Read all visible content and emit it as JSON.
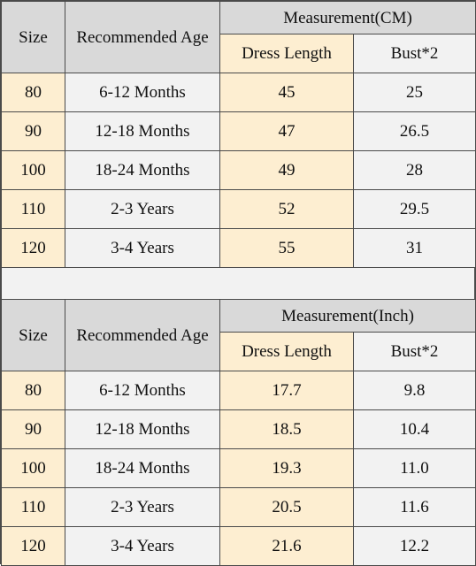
{
  "tables": [
    {
      "headers": {
        "size": "Size",
        "age": "Recommended Age",
        "measurement": "Measurement(CM)",
        "dress_length": "Dress Length",
        "bust": "Bust*2"
      },
      "rows": [
        {
          "size": "80",
          "age": "6-12 Months",
          "length": "45",
          "bust": "25"
        },
        {
          "size": "90",
          "age": "12-18 Months",
          "length": "47",
          "bust": "26.5"
        },
        {
          "size": "100",
          "age": "18-24 Months",
          "length": "49",
          "bust": "28"
        },
        {
          "size": "110",
          "age": "2-3 Years",
          "length": "52",
          "bust": "29.5"
        },
        {
          "size": "120",
          "age": "3-4 Years",
          "length": "55",
          "bust": "31"
        }
      ]
    },
    {
      "headers": {
        "size": "Size",
        "age": "Recommended Age",
        "measurement": "Measurement(Inch)",
        "dress_length": "Dress Length",
        "bust": "Bust*2"
      },
      "rows": [
        {
          "size": "80",
          "age": "6-12 Months",
          "length": "17.7",
          "bust": "9.8"
        },
        {
          "size": "90",
          "age": "12-18 Months",
          "length": "18.5",
          "bust": "10.4"
        },
        {
          "size": "100",
          "age": "18-24 Months",
          "length": "19.3",
          "bust": "11.0"
        },
        {
          "size": "110",
          "age": "2-3 Years",
          "length": "20.5",
          "bust": "11.6"
        },
        {
          "size": "120",
          "age": "3-4 Years",
          "length": "21.6",
          "bust": "12.2"
        }
      ]
    }
  ],
  "colors": {
    "header_gray": "#d9d9d9",
    "cream": "#fdeed1",
    "light_gray": "#f2f2f2",
    "border": "#4a4a4a"
  }
}
